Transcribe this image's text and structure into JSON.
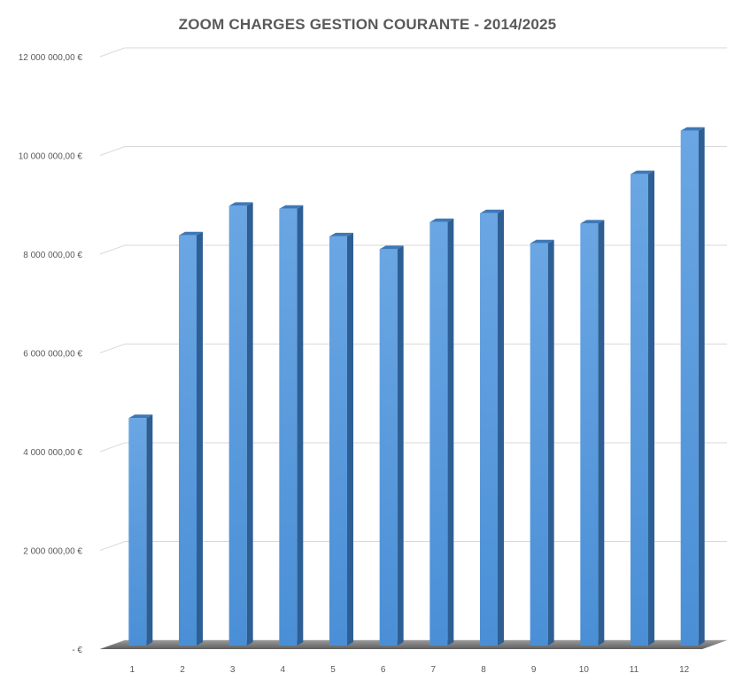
{
  "chart_data": {
    "type": "bar",
    "title": "ZOOM CHARGES GESTION COURANTE - 2014/2025",
    "xlabel": "",
    "ylabel": "",
    "categories": [
      "1",
      "2",
      "3",
      "4",
      "5",
      "6",
      "7",
      "8",
      "9",
      "10",
      "11",
      "12"
    ],
    "values": [
      4770000,
      8470000,
      9070000,
      9010000,
      8450000,
      8190000,
      8740000,
      8920000,
      8310000,
      8710000,
      9710000,
      10590000
    ],
    "ylim": [
      0,
      12000000
    ],
    "yticks": [
      0,
      2000000,
      4000000,
      6000000,
      8000000,
      10000000,
      12000000
    ],
    "ytick_labels": [
      "-   €",
      "2 000 000,00 €",
      "4 000 000,00 €",
      "6 000 000,00 €",
      "8 000 000,00 €",
      "10 000 000,00 €",
      "12 000 000,00 €"
    ],
    "grid": true,
    "legend": "none",
    "style": "3d-column",
    "colors": {
      "bar_front": "#4a8fd6",
      "bar_front_light": "#6aa6e3",
      "bar_side": "#2e5f94",
      "bar_top": "#3d78b8",
      "gridline": "#d9d9d9",
      "floor_shadow": "#7f7f7f"
    }
  }
}
